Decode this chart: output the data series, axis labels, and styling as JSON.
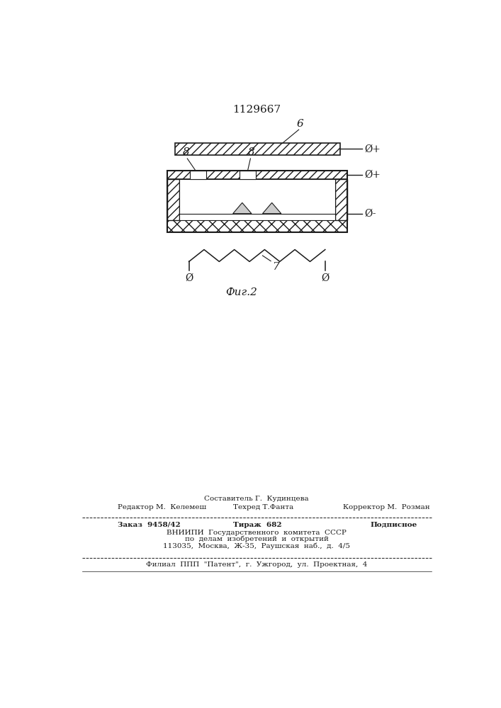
{
  "title": "1129667",
  "fig_label": "Фиг.2",
  "label_6": "6",
  "label_8a": "8",
  "label_8b": "8",
  "label_7": "7",
  "phi_plus_top": "Ø+",
  "phi_plus_mid": "Ø+",
  "phi_minus_mid": "Ø-",
  "phi_left": "Ø",
  "phi_right": "Ø",
  "line_color": "#1a1a1a",
  "footer_sestavitel": "Составитель Г.  Кудинцева",
  "footer_redaktor": "Редактор М.  Келемеш",
  "footer_tehred": "Техред Т.Фанта",
  "footer_korrektor": "Корректор М.  Розман",
  "footer_zakaz": "Заказ  9458/42",
  "footer_tirazh": "Тираж  682",
  "footer_podpisnoe": "Подписное",
  "footer_vniipI": "ВНИИПИ  Государственного  комитета  СССР",
  "footer_po_delam": "по  делам  изобретений  и  открытий",
  "footer_address": "113035,  Москва,  Ж-35,  Раушская  наб.,  д.  4/5",
  "footer_filial": "Филиал  ППП  \"Патент\",  г.  Ужгород,  ул.  Проектная,  4"
}
